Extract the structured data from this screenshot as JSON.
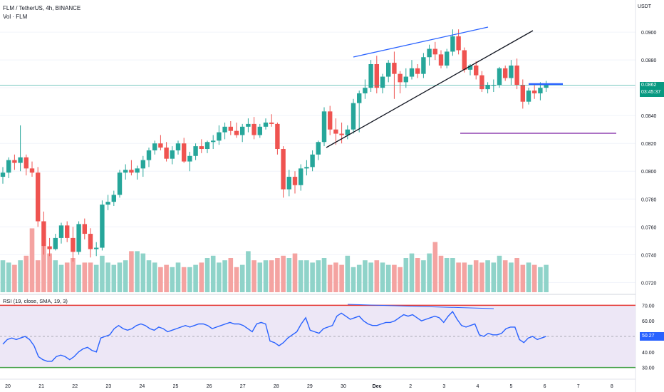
{
  "header": {
    "symbol_line": "FLM / TetherUS, 4h, BINANCE",
    "volume_label": "Vol · FLM",
    "currency": "USDT"
  },
  "price_badge": {
    "price": "0.0862",
    "countdown": "03:45:37"
  },
  "rsi": {
    "label": "RSI (19, close, SMA, 19, 3)",
    "value": "50.27"
  },
  "colors": {
    "up": "#26a69a",
    "down": "#ef5350",
    "up_vol": "#8fd3c9",
    "down_vol": "#f4a3a1",
    "rsi_line": "#2962ff",
    "rsi_band": "#ede7f6",
    "rsi_upper": "#e53935",
    "rsi_lower": "#43a047",
    "trend_blue": "#2962ff",
    "trend_black": "#131722",
    "support": "#7b1fa2"
  },
  "chart_data": {
    "type": "candlestick",
    "title": "FLM / TetherUS, 4h, BINANCE",
    "y_axis": {
      "ticks": [
        "0.0900",
        "0.0880",
        "0.0860",
        "0.0840",
        "0.0820",
        "0.0800",
        "0.0780",
        "0.0760",
        "0.0740",
        "0.0720"
      ],
      "range": [
        0.0713,
        0.0918
      ]
    },
    "x_axis": {
      "ticks": [
        "20",
        "21",
        "22",
        "23",
        "24",
        "25",
        "26",
        "27",
        "28",
        "29",
        "30",
        "Dec",
        "2",
        "3",
        "4",
        "5",
        "6",
        "7",
        "8"
      ]
    },
    "candles": [
      [
        0.0796,
        0.0803,
        0.0791,
        0.0799
      ],
      [
        0.0799,
        0.081,
        0.0795,
        0.0808
      ],
      [
        0.0808,
        0.0812,
        0.0801,
        0.0806
      ],
      [
        0.0806,
        0.0833,
        0.08,
        0.081
      ],
      [
        0.081,
        0.0812,
        0.0797,
        0.0802
      ],
      [
        0.0802,
        0.0807,
        0.0796,
        0.0799
      ],
      [
        0.0799,
        0.0803,
        0.076,
        0.0764
      ],
      [
        0.0764,
        0.0771,
        0.074,
        0.0746
      ],
      [
        0.0746,
        0.0752,
        0.0739,
        0.0744
      ],
      [
        0.0744,
        0.0755,
        0.0743,
        0.0752
      ],
      [
        0.0752,
        0.0763,
        0.0748,
        0.0761
      ],
      [
        0.0761,
        0.0764,
        0.0749,
        0.0752
      ],
      [
        0.0752,
        0.076,
        0.0735,
        0.0742
      ],
      [
        0.0742,
        0.0764,
        0.074,
        0.0762
      ],
      [
        0.0762,
        0.0766,
        0.0751,
        0.0755
      ],
      [
        0.0755,
        0.0759,
        0.0738,
        0.0744
      ],
      [
        0.0744,
        0.0749,
        0.0739,
        0.0745
      ],
      [
        0.0745,
        0.0779,
        0.0743,
        0.0776
      ],
      [
        0.0776,
        0.0783,
        0.0772,
        0.0778
      ],
      [
        0.0778,
        0.0786,
        0.0775,
        0.0783
      ],
      [
        0.0783,
        0.0801,
        0.0781,
        0.0799
      ],
      [
        0.0799,
        0.0805,
        0.0794,
        0.0801
      ],
      [
        0.0801,
        0.0808,
        0.0797,
        0.0799
      ],
      [
        0.0799,
        0.0804,
        0.0794,
        0.0802
      ],
      [
        0.0802,
        0.0811,
        0.0796,
        0.0808
      ],
      [
        0.0808,
        0.0817,
        0.0803,
        0.0815
      ],
      [
        0.0815,
        0.0822,
        0.0812,
        0.082
      ],
      [
        0.082,
        0.0826,
        0.0815,
        0.0817
      ],
      [
        0.0817,
        0.0821,
        0.0807,
        0.0809
      ],
      [
        0.0809,
        0.0818,
        0.0805,
        0.0815
      ],
      [
        0.0815,
        0.0822,
        0.0812,
        0.082
      ],
      [
        0.082,
        0.0824,
        0.0806,
        0.0807
      ],
      [
        0.0807,
        0.0814,
        0.08,
        0.0811
      ],
      [
        0.0811,
        0.082,
        0.0808,
        0.0818
      ],
      [
        0.0818,
        0.0823,
        0.0813,
        0.0816
      ],
      [
        0.0816,
        0.0822,
        0.0813,
        0.0821
      ],
      [
        0.0821,
        0.0826,
        0.0816,
        0.0822
      ],
      [
        0.0822,
        0.0833,
        0.0819,
        0.0828
      ],
      [
        0.0828,
        0.0835,
        0.0823,
        0.0832
      ],
      [
        0.0832,
        0.0836,
        0.0826,
        0.0829
      ],
      [
        0.0829,
        0.0835,
        0.0824,
        0.0826
      ],
      [
        0.0826,
        0.0834,
        0.0821,
        0.0832
      ],
      [
        0.0832,
        0.0838,
        0.0828,
        0.0834
      ],
      [
        0.0834,
        0.0839,
        0.0823,
        0.0826
      ],
      [
        0.0826,
        0.0834,
        0.0824,
        0.0832
      ],
      [
        0.0832,
        0.0838,
        0.083,
        0.0835
      ],
      [
        0.0835,
        0.0841,
        0.0832,
        0.0834
      ],
      [
        0.0834,
        0.0835,
        0.0812,
        0.0816
      ],
      [
        0.0816,
        0.0818,
        0.0781,
        0.0787
      ],
      [
        0.0787,
        0.0801,
        0.0782,
        0.0796
      ],
      [
        0.0796,
        0.08,
        0.0784,
        0.079
      ],
      [
        0.079,
        0.0805,
        0.0786,
        0.0802
      ],
      [
        0.0802,
        0.0808,
        0.0797,
        0.0803
      ],
      [
        0.0803,
        0.0815,
        0.08,
        0.0812
      ],
      [
        0.0812,
        0.0822,
        0.0808,
        0.0821
      ],
      [
        0.0821,
        0.0846,
        0.0818,
        0.0843
      ],
      [
        0.0843,
        0.0847,
        0.0826,
        0.083
      ],
      [
        0.083,
        0.0838,
        0.0819,
        0.0827
      ],
      [
        0.0827,
        0.0835,
        0.082,
        0.0826
      ],
      [
        0.0826,
        0.0833,
        0.0823,
        0.083
      ],
      [
        0.083,
        0.0852,
        0.0827,
        0.0849
      ],
      [
        0.0849,
        0.0858,
        0.0828,
        0.0856
      ],
      [
        0.0856,
        0.0866,
        0.0852,
        0.086
      ],
      [
        0.086,
        0.088,
        0.0857,
        0.0877
      ],
      [
        0.0877,
        0.0883,
        0.0856,
        0.086
      ],
      [
        0.086,
        0.087,
        0.0856,
        0.0868
      ],
      [
        0.0868,
        0.088,
        0.0864,
        0.0878
      ],
      [
        0.0878,
        0.0886,
        0.0852,
        0.087
      ],
      [
        0.087,
        0.0872,
        0.0856,
        0.0864
      ],
      [
        0.0864,
        0.0874,
        0.086,
        0.0868
      ],
      [
        0.0868,
        0.088,
        0.0866,
        0.0874
      ],
      [
        0.0874,
        0.0877,
        0.0867,
        0.087
      ],
      [
        0.087,
        0.0885,
        0.0867,
        0.0882
      ],
      [
        0.0882,
        0.0891,
        0.0876,
        0.0888
      ],
      [
        0.0888,
        0.0893,
        0.088,
        0.0884
      ],
      [
        0.0884,
        0.0887,
        0.0874,
        0.0876
      ],
      [
        0.0876,
        0.0888,
        0.0874,
        0.0886
      ],
      [
        0.0886,
        0.0902,
        0.0883,
        0.0897
      ],
      [
        0.0897,
        0.0902,
        0.0884,
        0.0887
      ],
      [
        0.0887,
        0.0889,
        0.0871,
        0.0873
      ],
      [
        0.0873,
        0.0877,
        0.0869,
        0.0876
      ],
      [
        0.0876,
        0.0879,
        0.0866,
        0.0869
      ],
      [
        0.0869,
        0.0872,
        0.0857,
        0.0859
      ],
      [
        0.0859,
        0.0864,
        0.0856,
        0.0862
      ],
      [
        0.0862,
        0.0866,
        0.0857,
        0.0862
      ],
      [
        0.0862,
        0.0875,
        0.086,
        0.0874
      ],
      [
        0.0874,
        0.0876,
        0.0865,
        0.0867
      ],
      [
        0.0867,
        0.088,
        0.0862,
        0.0876
      ],
      [
        0.0876,
        0.0881,
        0.0859,
        0.0862
      ],
      [
        0.0862,
        0.0866,
        0.0845,
        0.085
      ],
      [
        0.085,
        0.086,
        0.0848,
        0.0858
      ],
      [
        0.0858,
        0.0863,
        0.0852,
        0.0856
      ],
      [
        0.0856,
        0.0864,
        0.0851,
        0.086
      ],
      [
        0.086,
        0.0865,
        0.0857,
        0.0862
      ]
    ],
    "volume": [
      14,
      13,
      12,
      14,
      16,
      28,
      14,
      20,
      17,
      14,
      12,
      13,
      15,
      12,
      13,
      13,
      12,
      16,
      13,
      12,
      13,
      14,
      18,
      18,
      17,
      14,
      13,
      11,
      12,
      11,
      13,
      11,
      11,
      12,
      13,
      15,
      16,
      13,
      14,
      15,
      11,
      12,
      18,
      14,
      13,
      14,
      14,
      15,
      16,
      15,
      17,
      14,
      14,
      13,
      14,
      15,
      12,
      13,
      12,
      16,
      11,
      12,
      14,
      13,
      14,
      13,
      12,
      12,
      11,
      15,
      17,
      15,
      14,
      17,
      22,
      16,
      15,
      15,
      13,
      13,
      12,
      14,
      13,
      14,
      13,
      16,
      14,
      13,
      15,
      12,
      13,
      12,
      11,
      12
    ],
    "annotations": [
      {
        "type": "trendline",
        "color": "blue",
        "from": [
          0.0884,
          60
        ],
        "to": [
          0.0904,
          83
        ]
      },
      {
        "type": "trendline",
        "color": "black",
        "from": [
          0.0818,
          60
        ],
        "to": [
          0.0902,
          96
        ]
      },
      {
        "type": "hline-segment",
        "color": "purple",
        "level": 0.0828
      },
      {
        "type": "hline-segment",
        "color": "blue",
        "level": 0.0862
      },
      {
        "type": "hline",
        "color": "teal",
        "level": 0.0862
      }
    ]
  },
  "rsi_data": {
    "range": [
      30,
      70
    ],
    "ticks": [
      "70.00",
      "60.00",
      "40.00",
      "30.00"
    ],
    "upper": 70,
    "middle": 50,
    "lower": 30,
    "values": [
      45,
      48,
      49,
      48,
      49,
      50,
      48,
      44,
      37,
      35,
      34,
      34,
      37,
      38,
      37,
      35,
      37,
      40,
      42,
      43,
      41,
      40,
      49,
      50,
      51,
      55,
      57,
      55,
      54,
      55,
      57,
      58,
      57,
      55,
      54,
      56,
      55,
      53,
      54,
      55,
      56,
      57,
      56,
      57,
      58,
      58,
      57,
      55,
      56,
      57,
      58,
      59,
      58,
      58,
      57,
      55,
      53,
      58,
      59,
      58,
      47,
      46,
      44,
      46,
      49,
      51,
      53,
      58,
      62,
      54,
      53,
      52,
      55,
      56,
      57,
      63,
      65,
      63,
      61,
      62,
      63,
      60,
      58,
      57,
      57,
      58,
      59,
      59,
      60,
      62,
      64,
      63,
      64,
      62,
      60,
      61,
      62,
      63,
      62,
      59,
      63,
      66,
      61,
      57,
      56,
      57,
      58,
      51,
      50,
      52,
      51,
      51,
      52,
      55,
      56,
      56,
      48,
      46,
      49,
      50,
      48,
      49,
      50
    ]
  }
}
